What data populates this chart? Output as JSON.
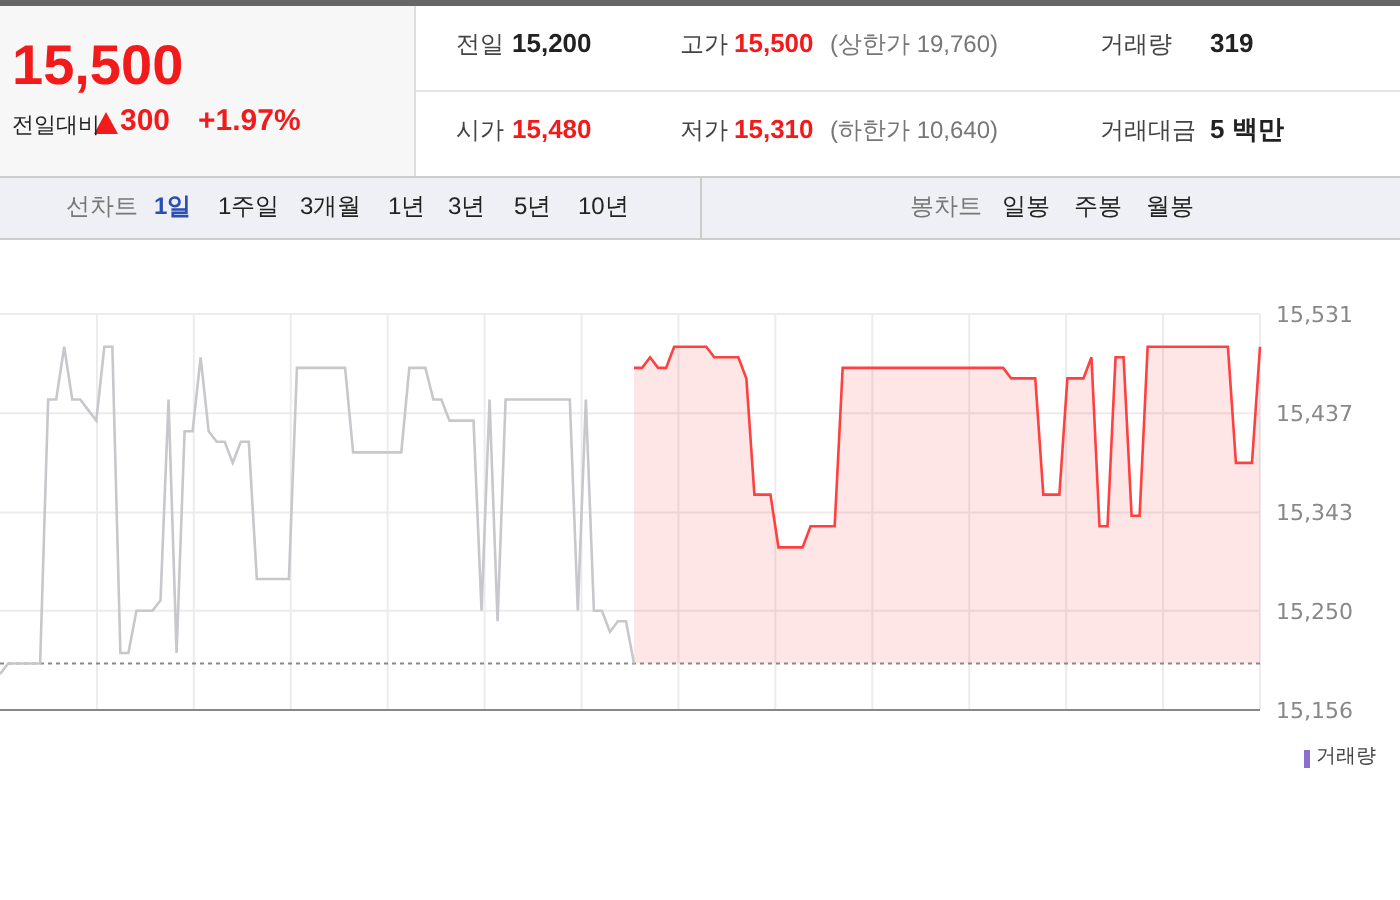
{
  "chart_data": {
    "type": "line",
    "categories": [
      null,
      null,
      null,
      null,
      null,
      null,
      null,
      null,
      null,
      null,
      null,
      null,
      null,
      null,
      null,
      null,
      null,
      null,
      null,
      null,
      null,
      null,
      null,
      null,
      null,
      null,
      null,
      null,
      null,
      null,
      null,
      null,
      null,
      null,
      null,
      null,
      null,
      null,
      null,
      null,
      null,
      null,
      null,
      null,
      null,
      null,
      null,
      null,
      null,
      null,
      null,
      null,
      null,
      null,
      null,
      null,
      null,
      null,
      null,
      null,
      null,
      null,
      null,
      null,
      null,
      null,
      null,
      null,
      null,
      null,
      null,
      null,
      null,
      null,
      null,
      null,
      null,
      null,
      null,
      null,
      null,
      null,
      null,
      null,
      null,
      null,
      null,
      null,
      null,
      null,
      null,
      null,
      null,
      null,
      null,
      null,
      null,
      null,
      null,
      null,
      null,
      null,
      null,
      null,
      null,
      null,
      null,
      null,
      null,
      null,
      null,
      null,
      null,
      null,
      null,
      null,
      null,
      null,
      null,
      null,
      null,
      null,
      null,
      null,
      null,
      null,
      null,
      null,
      null,
      null,
      null,
      null,
      null,
      null,
      null,
      null,
      null,
      null,
      null,
      null,
      null,
      null,
      null,
      null,
      null,
      null,
      null,
      null,
      null,
      null,
      null,
      null,
      null,
      null,
      null,
      null,
      null,
      null
    ],
    "series": [
      {
        "type": "line",
        "color": "#c8c8cc",
        "values": [
          15190,
          15200,
          15200,
          15200,
          15200,
          15200,
          15450,
          15450,
          15500,
          15450,
          15450,
          15440,
          15430,
          15500,
          15500,
          15210,
          15210,
          15250,
          15250,
          15250,
          15260,
          15450,
          15210,
          15420,
          15420,
          15490,
          15420,
          15410,
          15410,
          15390,
          15410,
          15410,
          15280,
          15280,
          15280,
          15280,
          15280,
          15480,
          15480,
          15480,
          15480,
          15480,
          15480,
          15480,
          15400,
          15400,
          15400,
          15400,
          15400,
          15400,
          15400,
          15480,
          15480,
          15480,
          15450,
          15450,
          15430,
          15430,
          15430,
          15430,
          15250,
          15450,
          15240,
          15450,
          15450,
          15450,
          15450,
          15450,
          15450,
          15450,
          15450,
          15450,
          15250,
          15450,
          15250,
          15250,
          15230,
          15240,
          15240,
          15200,
          null,
          null,
          null,
          null,
          null,
          null,
          null,
          null,
          null,
          null,
          null,
          null,
          null,
          null,
          null,
          null,
          null,
          null,
          null,
          null,
          null,
          null,
          null,
          null,
          null,
          null,
          null,
          null,
          null,
          null,
          null,
          null,
          null,
          null,
          null,
          null,
          null,
          null,
          null,
          null,
          null,
          null,
          null,
          null,
          null,
          null,
          null,
          null,
          null,
          null,
          null,
          null,
          null,
          null,
          null,
          null,
          null,
          null,
          null,
          null,
          null,
          null,
          null,
          null,
          null,
          null,
          null,
          null,
          null,
          null,
          null,
          null,
          null,
          null,
          null,
          null,
          null,
          null
        ]
      },
      {
        "type": "area",
        "color": "#ff4040",
        "values": [
          null,
          null,
          null,
          null,
          null,
          null,
          null,
          null,
          null,
          null,
          null,
          null,
          null,
          null,
          null,
          null,
          null,
          null,
          null,
          null,
          null,
          null,
          null,
          null,
          null,
          null,
          null,
          null,
          null,
          null,
          null,
          null,
          null,
          null,
          null,
          null,
          null,
          null,
          null,
          null,
          null,
          null,
          null,
          null,
          null,
          null,
          null,
          null,
          null,
          null,
          null,
          null,
          null,
          null,
          null,
          null,
          null,
          null,
          null,
          null,
          null,
          null,
          null,
          null,
          null,
          null,
          null,
          null,
          null,
          null,
          null,
          null,
          null,
          null,
          null,
          null,
          null,
          null,
          null,
          15480,
          15480,
          15490,
          15480,
          15480,
          15500,
          15500,
          15500,
          15500,
          15500,
          15490,
          15490,
          15490,
          15490,
          15470,
          15360,
          15360,
          15360,
          15310,
          15310,
          15310,
          15310,
          15330,
          15330,
          15330,
          15330,
          15480,
          15480,
          15480,
          15480,
          15480,
          15480,
          15480,
          15480,
          15480,
          15480,
          15480,
          15480,
          15480,
          15480,
          15480,
          15480,
          15480,
          15480,
          15480,
          15480,
          15480,
          15470,
          15470,
          15470,
          15470,
          15360,
          15360,
          15360,
          15470,
          15470,
          15470,
          15490,
          15330,
          15330,
          15490,
          15490,
          15340,
          15340,
          15500,
          15500,
          15500,
          15500,
          15500,
          15500,
          15500,
          15500,
          15500,
          15500,
          15500,
          15390,
          15390,
          15390,
          15500
        ]
      }
    ],
    "ylim": [
      15156,
      15531
    ],
    "yticks": [
      {
        "value": 15156,
        "label": "15,156"
      },
      {
        "value": 15250,
        "label": "15,250"
      },
      {
        "value": 15343,
        "label": "15,343"
      },
      {
        "value": 15437,
        "label": "15,437"
      },
      {
        "value": 15531,
        "label": "15,531"
      }
    ],
    "grid": true,
    "tick_labels": "y",
    "ref_lines": [
      {
        "axis": "y",
        "value": 15200,
        "color": "#888888",
        "line_style": "dotted"
      }
    ],
    "annotations": [
      "15,500",
      "전일대비",
      "300",
      "+1.97%",
      "전일",
      "15,200",
      "고가",
      "15,500",
      "(상한가 19,760)",
      "거래량",
      "319",
      "시가",
      "15,480",
      "저가",
      "15,310",
      "(하한가 10,640)",
      "거래대금",
      "5 백만",
      "선차트",
      "1일",
      "1주일",
      "3개월",
      "1년",
      "3년",
      "5년",
      "10년",
      "봉차트",
      "일봉",
      "주봉",
      "월봉",
      "거래량"
    ]
  }
}
